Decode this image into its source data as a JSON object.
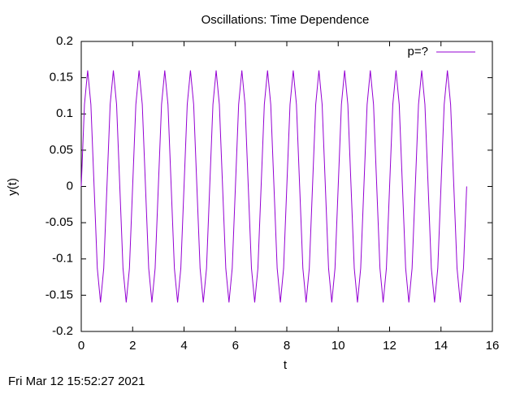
{
  "chart_data": {
    "type": "line",
    "title": "Oscillations: Time Dependence",
    "xlabel": "t",
    "ylabel": "y(t)",
    "timestamp": "Fri Mar 12 15:52:27 2021",
    "x": [
      0,
      0.125,
      0.25,
      0.375,
      0.5,
      0.625,
      0.75,
      0.875,
      1,
      1.125,
      1.25,
      1.375,
      1.5,
      1.625,
      1.75,
      1.875,
      2,
      2.125,
      2.25,
      2.375,
      2.5,
      2.625,
      2.75,
      2.875,
      3,
      3.125,
      3.25,
      3.375,
      3.5,
      3.625,
      3.75,
      3.875,
      4,
      4.125,
      4.25,
      4.375,
      4.5,
      4.625,
      4.75,
      4.875,
      5,
      5.125,
      5.25,
      5.375,
      5.5,
      5.625,
      5.75,
      5.875,
      6,
      6.125,
      6.25,
      6.375,
      6.5,
      6.625,
      6.75,
      6.875,
      7,
      7.125,
      7.25,
      7.375,
      7.5,
      7.625,
      7.75,
      7.875,
      8,
      8.125,
      8.25,
      8.375,
      8.5,
      8.625,
      8.75,
      8.875,
      9,
      9.125,
      9.25,
      9.375,
      9.5,
      9.625,
      9.75,
      9.875,
      10,
      10.125,
      10.25,
      10.375,
      10.5,
      10.625,
      10.75,
      10.875,
      11,
      11.125,
      11.25,
      11.375,
      11.5,
      11.625,
      11.75,
      11.875,
      12,
      12.125,
      12.25,
      12.375,
      12.5,
      12.625,
      12.75,
      12.875,
      13,
      13.125,
      13.25,
      13.375,
      13.5,
      13.625,
      13.75,
      13.875,
      14,
      14.125,
      14.25,
      14.375,
      14.5,
      14.625,
      14.75,
      14.875,
      15
    ],
    "series": [
      {
        "name": "p=?",
        "color": "#9400d3",
        "values": [
          0,
          0.113,
          0.16,
          0.113,
          0,
          -0.113,
          -0.16,
          -0.113,
          0,
          0.113,
          0.16,
          0.113,
          0,
          -0.113,
          -0.16,
          -0.113,
          0,
          0.113,
          0.16,
          0.113,
          0,
          -0.113,
          -0.16,
          -0.113,
          0,
          0.113,
          0.16,
          0.113,
          0,
          -0.113,
          -0.16,
          -0.113,
          0,
          0.113,
          0.16,
          0.113,
          0,
          -0.113,
          -0.16,
          -0.113,
          0,
          0.113,
          0.16,
          0.113,
          0,
          -0.113,
          -0.16,
          -0.113,
          0,
          0.113,
          0.16,
          0.113,
          0,
          -0.113,
          -0.16,
          -0.113,
          0,
          0.113,
          0.16,
          0.113,
          0,
          -0.113,
          -0.16,
          -0.113,
          0,
          0.113,
          0.16,
          0.113,
          0,
          -0.113,
          -0.16,
          -0.113,
          0,
          0.113,
          0.16,
          0.113,
          0,
          -0.113,
          -0.16,
          -0.113,
          0,
          0.113,
          0.16,
          0.113,
          0,
          -0.113,
          -0.16,
          -0.113,
          0,
          0.113,
          0.16,
          0.113,
          0,
          -0.113,
          -0.16,
          -0.113,
          0,
          0.113,
          0.16,
          0.113,
          0,
          -0.113,
          -0.16,
          -0.113,
          0,
          0.113,
          0.16,
          0.113,
          0,
          -0.113,
          -0.16,
          -0.113,
          0,
          0.113,
          0.16,
          0.113,
          0,
          -0.113,
          -0.16,
          -0.113,
          0
        ]
      }
    ],
    "xlim": [
      0,
      16
    ],
    "xticks": [
      0,
      2,
      4,
      6,
      8,
      10,
      12,
      14,
      16
    ],
    "ylim": [
      -0.2,
      0.2
    ],
    "yticks": [
      -0.2,
      -0.15,
      -0.1,
      -0.05,
      0,
      0.05,
      0.1,
      0.15,
      0.2
    ],
    "grid": false,
    "legend": "top-right"
  }
}
